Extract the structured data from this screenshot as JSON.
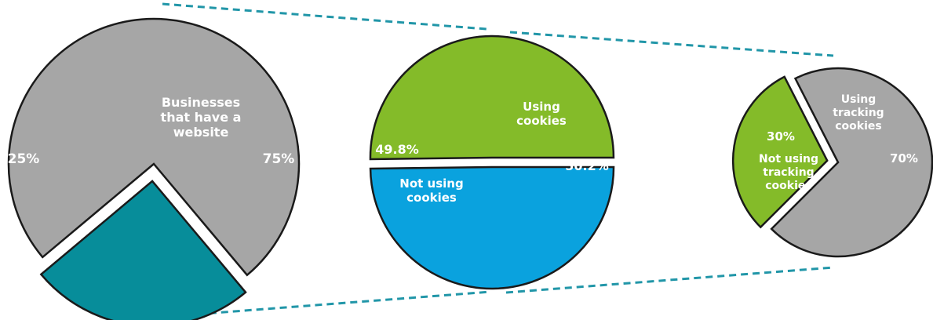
{
  "chart_data": [
    {
      "type": "pie",
      "title": "",
      "slices": [
        {
          "label": "",
          "value": 25,
          "value_label": "25%",
          "color": "#078D9A"
        },
        {
          "label": "Businesses that have a website",
          "value": 75,
          "value_label": "75%",
          "color": "#A6A6A6"
        }
      ]
    },
    {
      "type": "pie",
      "title": "",
      "slices": [
        {
          "label": "Not using cookies",
          "value": 49.8,
          "value_label": "49.8%",
          "color": "#0AA2DE"
        },
        {
          "label": "Using cookies",
          "value": 50.2,
          "value_label": "50.2%",
          "color": "#84BB29"
        }
      ]
    },
    {
      "type": "pie",
      "title": "",
      "slices": [
        {
          "label": "Not using tracking cookies",
          "value": 30,
          "value_label": "30%",
          "color": "#84BB29"
        },
        {
          "label": "Using tracking cookies",
          "value": 70,
          "value_label": "70%",
          "color": "#A6A6A6"
        }
      ]
    }
  ],
  "connector_color": "#2196A8",
  "label_color": "#FFFFFF",
  "outline_color": "#1A1A1A"
}
